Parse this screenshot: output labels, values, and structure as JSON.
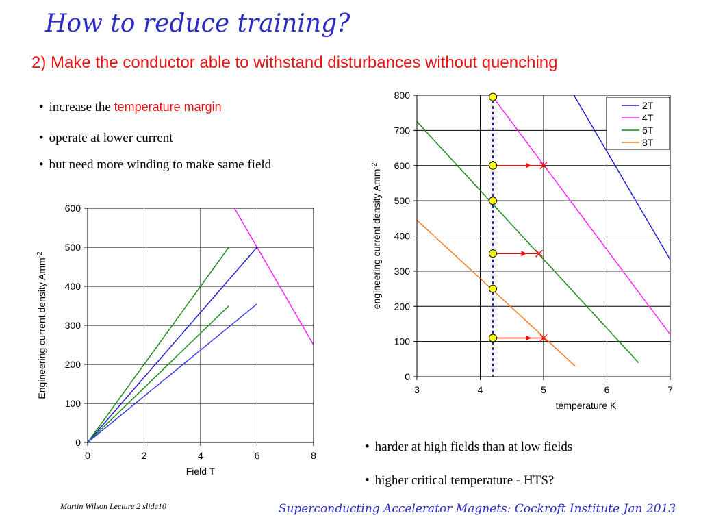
{
  "slide": {
    "title": "How to reduce training?",
    "subtitle": "2) Make the conductor able to withstand disturbances without quenching",
    "bullets_top": [
      {
        "prefix": "increase the ",
        "highlight": "temperature margin"
      },
      {
        "prefix": "operate at lower current",
        "highlight": ""
      },
      {
        "prefix": "but need more winding to make same field",
        "highlight": ""
      }
    ],
    "bullets_bottom": [
      "harder at high fields than at low fields",
      "higher critical temperature - HTS?"
    ],
    "footer_left": "Martin Wilson Lecture 2 slide10",
    "footer_right": "Superconducting Accelerator Magnets:  Cockroft Institute Jan 2013",
    "colors": {
      "title": "#2b2bc8",
      "subtitle": "#ee1111",
      "line_2T": "#1f1fd6",
      "line_4T": "#ff22ff",
      "line_6T": "#1a8a1a",
      "line_8T": "#ff7a1a",
      "marker_fill": "#ffff00",
      "arrow": "#ee1111"
    }
  },
  "chart_data": [
    {
      "type": "line",
      "xlabel": "Field T",
      "ylabel": "Engineering current density Amm",
      "ylabel_sup": "-2",
      "xlim": [
        0,
        8
      ],
      "ylim": [
        0,
        600
      ],
      "xticks": [
        0,
        2,
        4,
        6,
        8
      ],
      "yticks": [
        0,
        100,
        200,
        300,
        400,
        500,
        600
      ],
      "grid": true,
      "series": [
        {
          "color": "#ff22ff",
          "x": [
            5.2,
            8
          ],
          "y": [
            600,
            250
          ]
        },
        {
          "color": "#1a8a1a",
          "x": [
            0,
            5
          ],
          "y": [
            0,
            500
          ]
        },
        {
          "color": "#1f1fd6",
          "x": [
            0,
            6
          ],
          "y": [
            0,
            500
          ]
        },
        {
          "color": "#1a8a1a",
          "x": [
            0,
            5
          ],
          "y": [
            0,
            350
          ]
        },
        {
          "color": "#3a3aee",
          "x": [
            0,
            6
          ],
          "y": [
            0,
            355
          ]
        }
      ]
    },
    {
      "type": "line",
      "xlabel": "temperature K",
      "ylabel": "engineering current density Amm",
      "ylabel_sup": "-2",
      "xlim": [
        3,
        7
      ],
      "ylim": [
        0,
        800
      ],
      "xticks": [
        3,
        4,
        5,
        6,
        7
      ],
      "yticks": [
        0,
        100,
        200,
        300,
        400,
        500,
        600,
        700,
        800
      ],
      "grid": true,
      "legend_position": "top-right",
      "series": [
        {
          "name": "2T",
          "color": "#1f1fd6",
          "x": [
            5.48,
            7.0
          ],
          "y": [
            800,
            333
          ]
        },
        {
          "name": "4T",
          "color": "#ff22ff",
          "x": [
            4.2,
            7.0
          ],
          "y": [
            795,
            120
          ]
        },
        {
          "name": "6T",
          "color": "#1a8a1a",
          "x": [
            3.0,
            6.5
          ],
          "y": [
            725,
            40
          ]
        },
        {
          "name": "8T",
          "color": "#ff7a1a",
          "x": [
            3.0,
            5.5
          ],
          "y": [
            445,
            30
          ]
        }
      ],
      "operating_temperature": 4.2,
      "markers": [
        {
          "x": 4.2,
          "y": 795
        },
        {
          "x": 4.2,
          "y": 600
        },
        {
          "x": 4.2,
          "y": 500
        },
        {
          "x": 4.2,
          "y": 350
        },
        {
          "x": 4.2,
          "y": 250
        },
        {
          "x": 4.2,
          "y": 110
        }
      ],
      "margin_arrows": [
        {
          "x_from": 4.2,
          "x_to": 5.0,
          "y": 600
        },
        {
          "x_from": 4.2,
          "x_to": 4.93,
          "y": 350
        },
        {
          "x_from": 4.2,
          "x_to": 5.0,
          "y": 110
        }
      ]
    }
  ]
}
